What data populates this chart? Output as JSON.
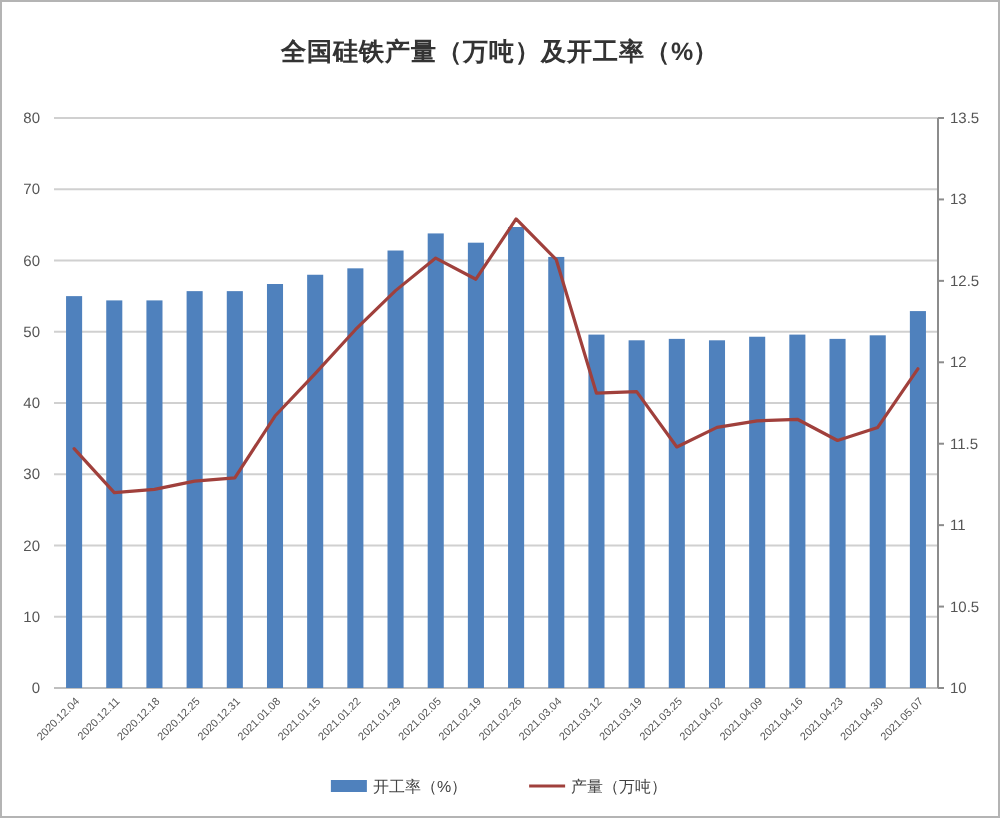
{
  "chart_data": {
    "type": "bar",
    "title": "全国硅铁产量（万吨）及开工率（%）",
    "categories": [
      "2020.12.04",
      "2020.12.11",
      "2020.12.18",
      "2020.12.25",
      "2020.12.31",
      "2021.01.08",
      "2021.01.15",
      "2021.01.22",
      "2021.01.29",
      "2021.02.05",
      "2021.02.19",
      "2021.02.26",
      "2021.03.04",
      "2021.03.12",
      "2021.03.19",
      "2021.03.25",
      "2021.04.02",
      "2021.04.09",
      "2021.04.16",
      "2021.04.23",
      "2021.04.30",
      "2021.05.07"
    ],
    "series": [
      {
        "name": "开工率（%）",
        "color": "#4f81bd",
        "values": [
          55.0,
          54.4,
          54.4,
          55.7,
          55.7,
          56.7,
          58.0,
          58.9,
          61.4,
          63.8,
          62.5,
          64.7,
          60.5,
          49.6,
          48.8,
          49.0,
          48.8,
          49.3,
          49.6,
          49.0,
          49.5,
          52.9
        ]
      },
      {
        "name": "产量（万吨）",
        "type": "line",
        "axis": "y2",
        "color": "#a0403c",
        "values": [
          11.47,
          11.2,
          11.22,
          11.27,
          11.29,
          11.67,
          11.93,
          12.2,
          12.44,
          12.64,
          12.51,
          12.88,
          12.63,
          11.81,
          11.82,
          11.48,
          11.6,
          11.64,
          11.65,
          11.52,
          11.6,
          11.96
        ]
      }
    ],
    "ylim": [
      0,
      80
    ],
    "yticks": [
      0,
      10,
      20,
      30,
      40,
      50,
      60,
      70,
      80
    ],
    "y2lim": [
      10,
      13.5
    ],
    "y2ticks": [
      10,
      10.5,
      11,
      11.5,
      12,
      12.5,
      13,
      13.5
    ],
    "grid": "y",
    "legend": "bottom"
  }
}
